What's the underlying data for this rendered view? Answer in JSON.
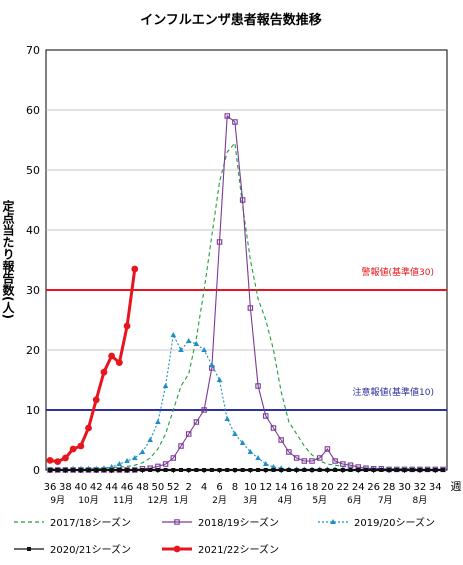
{
  "chart_data": {
    "type": "line",
    "title": "インフルエンザ患者報告数推移",
    "ylabel": "定点当たり報告数(人)",
    "xlabel": "週",
    "ylim": [
      0,
      70
    ],
    "yticks": [
      0,
      10,
      20,
      30,
      40,
      50,
      60,
      70
    ],
    "grid": true,
    "weeks": [
      36,
      37,
      38,
      39,
      40,
      41,
      42,
      43,
      44,
      45,
      46,
      47,
      48,
      49,
      50,
      51,
      52,
      1,
      2,
      3,
      4,
      5,
      6,
      7,
      8,
      9,
      10,
      11,
      12,
      13,
      14,
      15,
      16,
      17,
      18,
      19,
      20,
      21,
      22,
      23,
      24,
      25,
      26,
      27,
      28,
      29,
      30,
      31,
      32,
      33,
      34,
      35
    ],
    "x_tick_labels": [
      "36",
      "38",
      "40",
      "42",
      "44",
      "46",
      "48",
      "50",
      "52",
      "2",
      "4",
      "6",
      "8",
      "10",
      "12",
      "14",
      "16",
      "18",
      "20",
      "22",
      "24",
      "26",
      "28",
      "30",
      "32",
      "34"
    ],
    "x_tick_weeks": [
      36,
      38,
      40,
      42,
      44,
      46,
      48,
      50,
      52,
      2,
      4,
      6,
      8,
      10,
      12,
      14,
      16,
      18,
      20,
      22,
      24,
      26,
      28,
      30,
      32,
      34
    ],
    "month_labels": [
      {
        "label": "9月",
        "week": 37
      },
      {
        "label": "10月",
        "week": 41
      },
      {
        "label": "11月",
        "week": 45.5
      },
      {
        "label": "12月",
        "week": 50
      },
      {
        "label": "1月",
        "week": 1
      },
      {
        "label": "2月",
        "week": 6
      },
      {
        "label": "3月",
        "week": 10
      },
      {
        "label": "4月",
        "week": 14.5
      },
      {
        "label": "5月",
        "week": 19
      },
      {
        "label": "6月",
        "week": 23.5
      },
      {
        "label": "7月",
        "week": 27.5
      },
      {
        "label": "8月",
        "week": 32
      }
    ],
    "thresholds": [
      {
        "label": "警報値(基準値30)",
        "value": 30,
        "color": "#e8141e"
      },
      {
        "label": "注意報値(基準値10)",
        "value": 10,
        "color": "#2e2fa0"
      }
    ],
    "series": [
      {
        "name": "2017/18シーズン",
        "color": "#1f9e3a",
        "dash": "4,3",
        "marker": "none",
        "values": [
          0.2,
          0.2,
          0.2,
          0.2,
          0.2,
          0.2,
          0.2,
          0.3,
          0.4,
          0.5,
          0.6,
          0.8,
          1.2,
          2,
          3.5,
          6,
          10,
          14,
          16,
          22,
          30,
          39,
          48,
          53,
          54.5,
          44,
          35,
          28.5,
          25,
          20,
          13,
          8,
          6,
          4,
          2.5,
          1.5,
          1,
          0.8,
          0.6,
          0.5,
          0.4,
          0.3,
          0.3,
          0.2,
          0.2,
          0.2,
          0.2,
          0.2,
          0.2,
          0.2,
          0.2,
          0.2
        ]
      },
      {
        "name": "2018/19シーズン",
        "color": "#7b3a96",
        "dash": "",
        "marker": "square",
        "values": [
          0,
          0,
          0,
          0,
          0,
          0,
          0,
          0,
          0,
          0,
          0,
          0,
          0.2,
          0.3,
          0.6,
          1,
          2,
          4,
          6,
          8,
          10,
          17,
          38,
          59,
          58,
          45,
          27,
          14,
          9,
          7,
          5,
          3,
          2,
          1.5,
          1.5,
          2,
          3.5,
          1.5,
          1,
          0.8,
          0.5,
          0.3,
          0.2,
          0.2,
          0.1,
          0.1,
          0.1,
          0.1,
          0.1,
          0.1,
          0.1,
          0.1
        ]
      },
      {
        "name": "2019/20シーズン",
        "color": "#1d8fc7",
        "dash": "2,2",
        "marker": "triangle",
        "values": [
          0.1,
          0.1,
          0.1,
          0.2,
          0.2,
          0.2,
          0.2,
          0.3,
          0.5,
          1,
          1.5,
          2,
          3,
          5,
          8,
          14,
          22.5,
          20,
          21.5,
          21,
          20,
          17.5,
          15,
          8.5,
          6,
          4.5,
          3,
          2,
          1,
          0.5,
          0.3,
          0.1,
          0.1,
          0.1,
          0.1,
          0.1,
          0.1,
          0.1,
          0.1,
          0.1,
          0.1,
          0.1,
          0.1,
          0.1,
          0.1,
          0.1,
          0.1,
          0.1,
          0.1,
          0.1,
          0.1,
          0.1
        ]
      },
      {
        "name": "2020/21シーズン",
        "color": "#111111",
        "dash": "",
        "marker": "square",
        "values": [
          0,
          0,
          0,
          0,
          0,
          0,
          0,
          0,
          0,
          0,
          0,
          0,
          0,
          0,
          0,
          0,
          0,
          0,
          0,
          0,
          0,
          0,
          0,
          0,
          0,
          0,
          0,
          0,
          0,
          0,
          0,
          0,
          0,
          0,
          0,
          0,
          0,
          0,
          0,
          0,
          0,
          0,
          0,
          0,
          0,
          0,
          0,
          0,
          0,
          0,
          0,
          0
        ]
      },
      {
        "name": "2021/22シーズン",
        "color": "#e8141e",
        "dash": "",
        "marker": "circle",
        "values": [
          1.6,
          1.4,
          2,
          3.5,
          4,
          7,
          11.7,
          16.3,
          19,
          17.9,
          24,
          33.5
        ]
      }
    ]
  }
}
